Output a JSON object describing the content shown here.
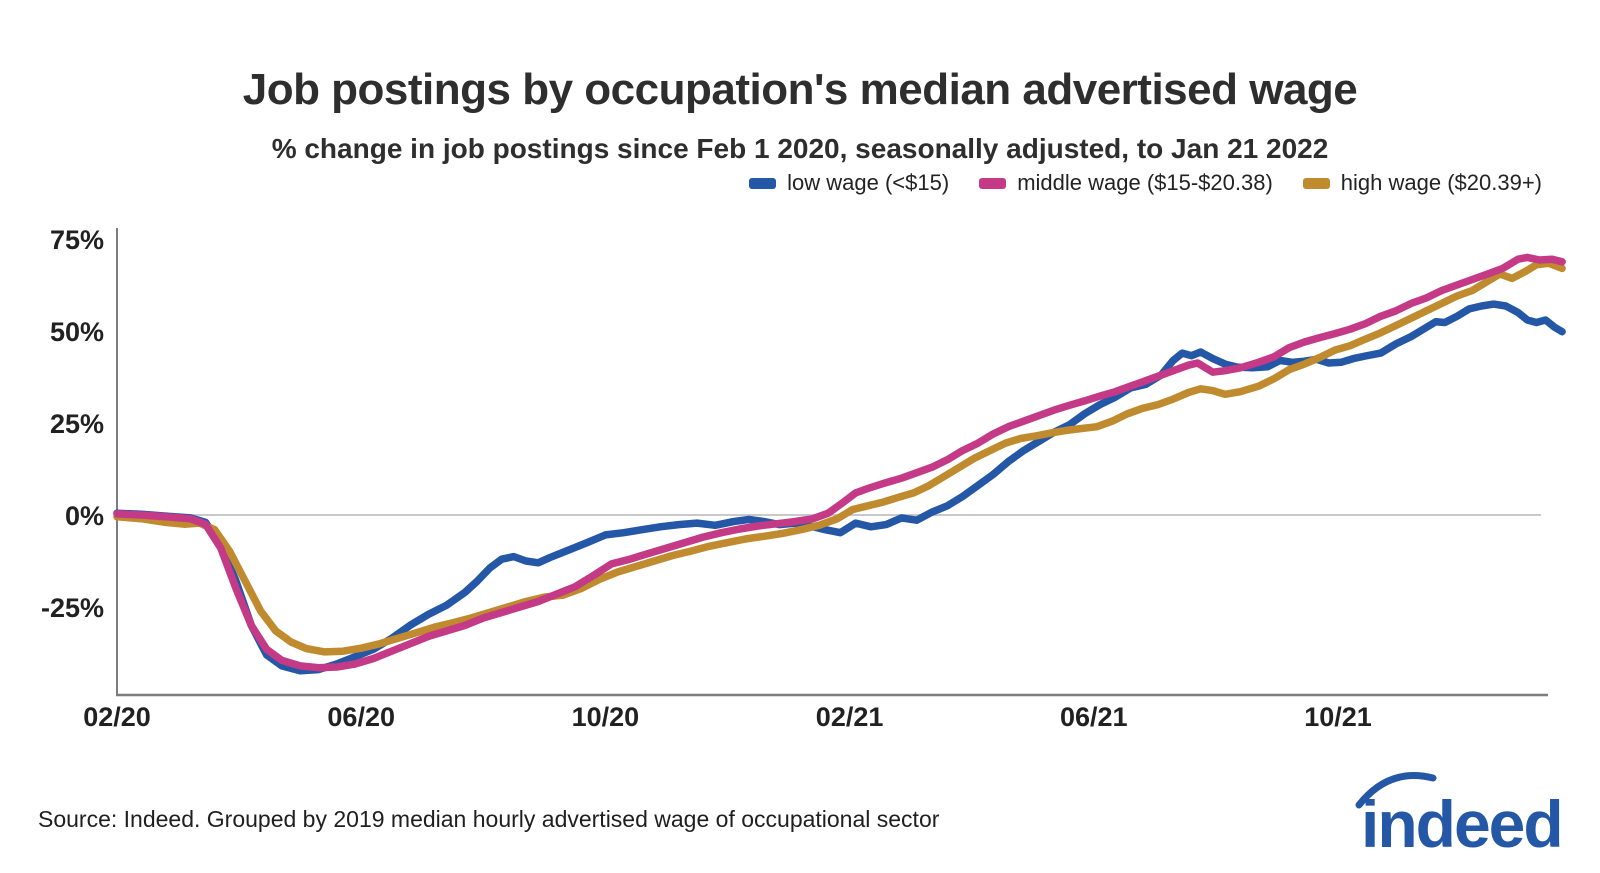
{
  "header": {
    "title": "Job postings by occupation's median advertised wage",
    "subtitle": "% change in job postings since Feb 1 2020, seasonally adjusted, to Jan 21 2022"
  },
  "chart_data": {
    "type": "line",
    "title": "Job postings by occupation's median advertised wage",
    "subtitle": "% change in job postings since Feb 1 2020, seasonally adjusted, to Jan 21 2022",
    "x_unit": "months since Feb 1 2020",
    "xlim": [
      0,
      23.67
    ],
    "ylim": [
      -48,
      77
    ],
    "grid": "zero line only",
    "legend_position": "top-right",
    "axis_color": "#7d7d7d",
    "zero_line_color": "#c9c9c9",
    "x_ticks": {
      "values": [
        0,
        4,
        8,
        12,
        16,
        20
      ],
      "labels": [
        "02/20",
        "06/20",
        "10/20",
        "02/21",
        "06/21",
        "10/21"
      ]
    },
    "y_ticks": {
      "values": [
        75,
        50,
        25,
        0,
        -25
      ],
      "labels": [
        "75%",
        "50%",
        "25%",
        "0%",
        "-25%"
      ]
    },
    "series": [
      {
        "name": "low wage (<$15)",
        "color": "#2557a7",
        "points": [
          [
            0,
            0.5
          ],
          [
            0.4,
            0.2
          ],
          [
            0.8,
            -0.3
          ],
          [
            1.2,
            -0.8
          ],
          [
            1.45,
            -2
          ],
          [
            1.7,
            -8
          ],
          [
            1.95,
            -18
          ],
          [
            2.2,
            -30
          ],
          [
            2.45,
            -38
          ],
          [
            2.7,
            -41
          ],
          [
            3,
            -42.3
          ],
          [
            3.3,
            -42
          ],
          [
            3.6,
            -40.5
          ],
          [
            3.9,
            -38.5
          ],
          [
            4.2,
            -36.5
          ],
          [
            4.5,
            -33.5
          ],
          [
            4.8,
            -30
          ],
          [
            5.1,
            -27
          ],
          [
            5.4,
            -24.5
          ],
          [
            5.7,
            -21
          ],
          [
            5.9,
            -18
          ],
          [
            6.1,
            -14.5
          ],
          [
            6.3,
            -12
          ],
          [
            6.5,
            -11.3
          ],
          [
            6.7,
            -12.5
          ],
          [
            6.9,
            -13
          ],
          [
            7.1,
            -11.5
          ],
          [
            7.4,
            -9.5
          ],
          [
            7.7,
            -7.5
          ],
          [
            8,
            -5.4
          ],
          [
            8.3,
            -4.8
          ],
          [
            8.6,
            -4
          ],
          [
            8.9,
            -3.2
          ],
          [
            9.2,
            -2.6
          ],
          [
            9.5,
            -2.2
          ],
          [
            9.8,
            -2.8
          ],
          [
            10.1,
            -1.8
          ],
          [
            10.35,
            -1.2
          ],
          [
            10.6,
            -1.8
          ],
          [
            10.85,
            -2.6
          ],
          [
            11.1,
            -2.2
          ],
          [
            11.35,
            -3
          ],
          [
            11.6,
            -4
          ],
          [
            11.85,
            -4.8
          ],
          [
            12.1,
            -2.2
          ],
          [
            12.35,
            -3.2
          ],
          [
            12.6,
            -2.6
          ],
          [
            12.85,
            -0.8
          ],
          [
            13.1,
            -1.4
          ],
          [
            13.35,
            0.8
          ],
          [
            13.6,
            2.5
          ],
          [
            13.85,
            5
          ],
          [
            14.1,
            8
          ],
          [
            14.35,
            11
          ],
          [
            14.6,
            14.5
          ],
          [
            14.85,
            17.5
          ],
          [
            15.1,
            20
          ],
          [
            15.35,
            22.5
          ],
          [
            15.6,
            24.5
          ],
          [
            15.85,
            27.5
          ],
          [
            16.1,
            30
          ],
          [
            16.35,
            32
          ],
          [
            16.6,
            34.5
          ],
          [
            16.85,
            35.5
          ],
          [
            17.1,
            38
          ],
          [
            17.3,
            42
          ],
          [
            17.45,
            44
          ],
          [
            17.6,
            43.3
          ],
          [
            17.75,
            44.3
          ],
          [
            17.95,
            42.5
          ],
          [
            18.15,
            41
          ],
          [
            18.35,
            40.2
          ],
          [
            18.6,
            40
          ],
          [
            18.85,
            40.3
          ],
          [
            19.05,
            42
          ],
          [
            19.25,
            41.5
          ],
          [
            19.45,
            41.8
          ],
          [
            19.65,
            42.3
          ],
          [
            19.85,
            41.3
          ],
          [
            20.05,
            41.5
          ],
          [
            20.25,
            42.5
          ],
          [
            20.45,
            43.2
          ],
          [
            20.7,
            44
          ],
          [
            20.95,
            46.5
          ],
          [
            21.2,
            48.5
          ],
          [
            21.45,
            51
          ],
          [
            21.6,
            52.5
          ],
          [
            21.75,
            52.3
          ],
          [
            21.95,
            54
          ],
          [
            22.15,
            56
          ],
          [
            22.35,
            56.8
          ],
          [
            22.55,
            57.3
          ],
          [
            22.75,
            56.8
          ],
          [
            22.95,
            55
          ],
          [
            23.1,
            53
          ],
          [
            23.25,
            52.3
          ],
          [
            23.4,
            53
          ],
          [
            23.55,
            51
          ],
          [
            23.67,
            49.8
          ]
        ]
      },
      {
        "name": "middle wage ($15-$20.38)",
        "color": "#c43a87",
        "points": [
          [
            0,
            0.3
          ],
          [
            0.4,
            0
          ],
          [
            0.8,
            -0.5
          ],
          [
            1.2,
            -1
          ],
          [
            1.45,
            -2.5
          ],
          [
            1.7,
            -9
          ],
          [
            1.95,
            -20
          ],
          [
            2.2,
            -30
          ],
          [
            2.45,
            -36.5
          ],
          [
            2.7,
            -39.5
          ],
          [
            3,
            -41
          ],
          [
            3.3,
            -41.5
          ],
          [
            3.6,
            -41.3
          ],
          [
            3.9,
            -40.5
          ],
          [
            4.2,
            -39
          ],
          [
            4.5,
            -37
          ],
          [
            4.8,
            -35
          ],
          [
            5.1,
            -33
          ],
          [
            5.4,
            -31.5
          ],
          [
            5.7,
            -30
          ],
          [
            6,
            -28
          ],
          [
            6.3,
            -26.5
          ],
          [
            6.6,
            -25
          ],
          [
            6.9,
            -23.5
          ],
          [
            7.2,
            -21.5
          ],
          [
            7.5,
            -19.5
          ],
          [
            7.8,
            -16.5
          ],
          [
            8.1,
            -13.3
          ],
          [
            8.4,
            -12
          ],
          [
            8.7,
            -10.5
          ],
          [
            9,
            -9
          ],
          [
            9.3,
            -7.5
          ],
          [
            9.6,
            -6
          ],
          [
            9.9,
            -4.8
          ],
          [
            10.2,
            -3.8
          ],
          [
            10.5,
            -3
          ],
          [
            10.8,
            -2.4
          ],
          [
            11.1,
            -1.8
          ],
          [
            11.4,
            -1
          ],
          [
            11.65,
            0.5
          ],
          [
            11.9,
            3.5
          ],
          [
            12.1,
            6
          ],
          [
            12.35,
            7.5
          ],
          [
            12.6,
            8.8
          ],
          [
            12.85,
            10
          ],
          [
            13.1,
            11.5
          ],
          [
            13.35,
            13
          ],
          [
            13.6,
            15
          ],
          [
            13.85,
            17.5
          ],
          [
            14.1,
            19.5
          ],
          [
            14.35,
            22
          ],
          [
            14.6,
            24
          ],
          [
            14.85,
            25.5
          ],
          [
            15.1,
            27
          ],
          [
            15.35,
            28.5
          ],
          [
            15.6,
            29.8
          ],
          [
            15.85,
            31
          ],
          [
            16.1,
            32.3
          ],
          [
            16.35,
            33.5
          ],
          [
            16.6,
            35
          ],
          [
            16.85,
            36.5
          ],
          [
            17.1,
            38
          ],
          [
            17.35,
            39.5
          ],
          [
            17.55,
            40.7
          ],
          [
            17.7,
            41.3
          ],
          [
            17.95,
            38.8
          ],
          [
            18.15,
            39.2
          ],
          [
            18.4,
            40
          ],
          [
            18.7,
            41.5
          ],
          [
            18.95,
            43
          ],
          [
            19.2,
            45.5
          ],
          [
            19.45,
            47
          ],
          [
            19.7,
            48.2
          ],
          [
            19.95,
            49.3
          ],
          [
            20.2,
            50.5
          ],
          [
            20.45,
            52
          ],
          [
            20.7,
            54
          ],
          [
            20.95,
            55.5
          ],
          [
            21.2,
            57.5
          ],
          [
            21.45,
            59
          ],
          [
            21.7,
            61
          ],
          [
            21.95,
            62.5
          ],
          [
            22.2,
            64
          ],
          [
            22.45,
            65.5
          ],
          [
            22.7,
            67
          ],
          [
            22.95,
            69.5
          ],
          [
            23.1,
            70
          ],
          [
            23.3,
            69.3
          ],
          [
            23.5,
            69.5
          ],
          [
            23.67,
            68.8
          ]
        ]
      },
      {
        "name": "high wage ($20.39+)",
        "color": "#bf8b2e",
        "points": [
          [
            0,
            -0.5
          ],
          [
            0.4,
            -1
          ],
          [
            0.8,
            -2
          ],
          [
            1.1,
            -2.5
          ],
          [
            1.35,
            -2.2
          ],
          [
            1.6,
            -4
          ],
          [
            1.85,
            -10
          ],
          [
            2.1,
            -18
          ],
          [
            2.35,
            -26
          ],
          [
            2.6,
            -31.5
          ],
          [
            2.85,
            -34.5
          ],
          [
            3.1,
            -36.3
          ],
          [
            3.4,
            -37.2
          ],
          [
            3.7,
            -37
          ],
          [
            4,
            -36.2
          ],
          [
            4.3,
            -35
          ],
          [
            4.6,
            -33.5
          ],
          [
            4.9,
            -32
          ],
          [
            5.2,
            -30.5
          ],
          [
            5.5,
            -29.3
          ],
          [
            5.8,
            -28
          ],
          [
            6.1,
            -26.5
          ],
          [
            6.4,
            -25
          ],
          [
            6.7,
            -23.5
          ],
          [
            7,
            -22.3
          ],
          [
            7.3,
            -21.8
          ],
          [
            7.6,
            -20
          ],
          [
            7.9,
            -17.5
          ],
          [
            8.2,
            -15.5
          ],
          [
            8.5,
            -14
          ],
          [
            8.8,
            -12.5
          ],
          [
            9.1,
            -11
          ],
          [
            9.4,
            -9.8
          ],
          [
            9.7,
            -8.5
          ],
          [
            10,
            -7.5
          ],
          [
            10.3,
            -6.5
          ],
          [
            10.6,
            -5.8
          ],
          [
            10.9,
            -5
          ],
          [
            11.2,
            -4
          ],
          [
            11.5,
            -2.8
          ],
          [
            11.8,
            -1
          ],
          [
            12.05,
            1.5
          ],
          [
            12.3,
            2.5
          ],
          [
            12.55,
            3.5
          ],
          [
            12.8,
            4.8
          ],
          [
            13.05,
            6
          ],
          [
            13.3,
            8
          ],
          [
            13.55,
            10.5
          ],
          [
            13.8,
            13
          ],
          [
            14.05,
            15.5
          ],
          [
            14.3,
            17.5
          ],
          [
            14.55,
            19.5
          ],
          [
            14.8,
            20.8
          ],
          [
            15.05,
            21.5
          ],
          [
            15.3,
            22.3
          ],
          [
            15.55,
            23
          ],
          [
            15.8,
            23.5
          ],
          [
            16.05,
            24
          ],
          [
            16.3,
            25.5
          ],
          [
            16.55,
            27.5
          ],
          [
            16.8,
            29
          ],
          [
            17.05,
            30
          ],
          [
            17.3,
            31.5
          ],
          [
            17.55,
            33.3
          ],
          [
            17.75,
            34.3
          ],
          [
            17.95,
            33.8
          ],
          [
            18.15,
            32.8
          ],
          [
            18.4,
            33.5
          ],
          [
            18.7,
            35
          ],
          [
            18.95,
            37
          ],
          [
            19.2,
            39.5
          ],
          [
            19.45,
            41
          ],
          [
            19.7,
            42.8
          ],
          [
            19.95,
            44.8
          ],
          [
            20.2,
            46
          ],
          [
            20.45,
            47.8
          ],
          [
            20.7,
            49.5
          ],
          [
            20.95,
            51.5
          ],
          [
            21.2,
            53.5
          ],
          [
            21.45,
            55.5
          ],
          [
            21.7,
            57.5
          ],
          [
            21.95,
            59.5
          ],
          [
            22.2,
            61
          ],
          [
            22.45,
            63.5
          ],
          [
            22.65,
            65.5
          ],
          [
            22.85,
            64.3
          ],
          [
            23.05,
            66
          ],
          [
            23.25,
            68
          ],
          [
            23.45,
            68.4
          ],
          [
            23.67,
            67
          ]
        ]
      }
    ]
  },
  "footer": {
    "source": "Source: Indeed. Grouped by 2019 median hourly advertised wage of occupational sector",
    "logo_text": "indeed",
    "logo_color": "#2557a7"
  }
}
